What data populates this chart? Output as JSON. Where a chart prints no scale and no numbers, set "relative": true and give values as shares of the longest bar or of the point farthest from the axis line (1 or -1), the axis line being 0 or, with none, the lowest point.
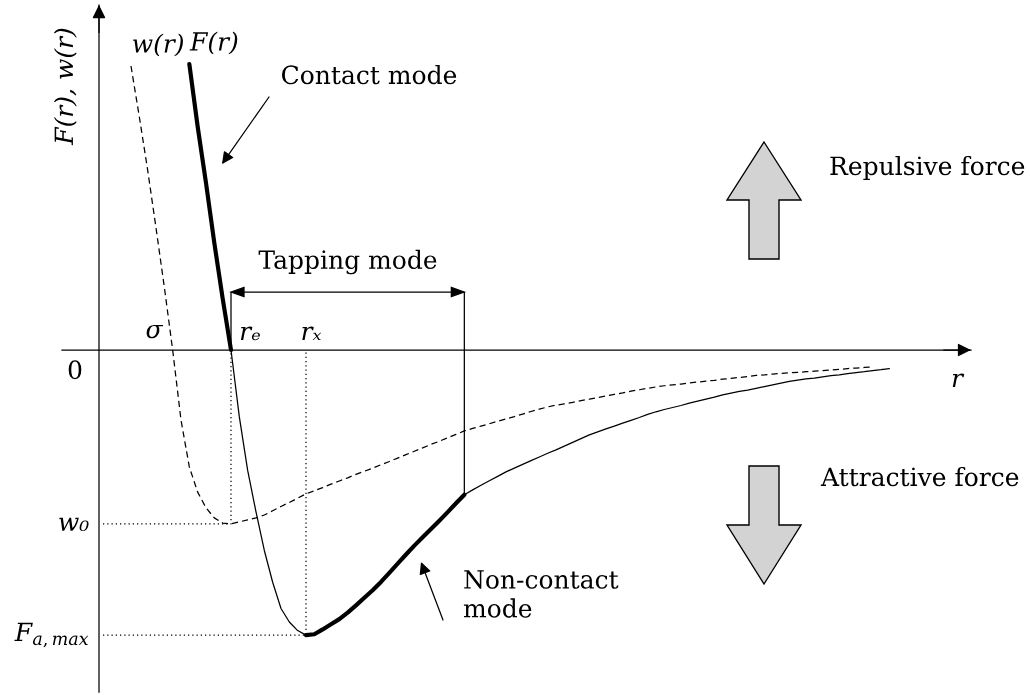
{
  "chart_data": {
    "type": "line",
    "relative": true,
    "xlabel": "r",
    "ylabel": "F(r), w(r)",
    "categories": [
      null,
      null,
      null,
      null,
      null,
      null,
      null,
      null,
      null,
      null,
      null,
      null,
      null,
      null,
      null,
      null,
      null,
      null,
      null,
      null,
      null,
      null,
      null,
      null,
      null,
      null,
      null,
      null,
      null,
      null,
      null,
      null,
      null,
      null,
      null,
      null,
      null,
      null,
      null,
      null,
      null,
      null,
      null,
      null,
      null,
      null,
      null,
      null,
      null,
      null,
      null,
      null,
      null,
      null,
      null,
      null,
      null,
      null,
      null,
      null,
      null,
      null,
      null,
      null,
      null,
      null,
      null,
      null,
      null,
      null,
      null,
      null,
      null,
      null,
      null,
      null,
      null,
      null,
      null,
      null,
      null,
      null,
      null,
      null,
      null,
      null,
      null,
      null,
      null,
      null,
      null,
      null
    ],
    "series": [
      {
        "name": "w(r)",
        "color": "#000000",
        "line_style": "dashed",
        "values": [
          0.993,
          0.815,
          0.629,
          0.427,
          0.22,
          0.0,
          -0.245,
          -0.409,
          -0.497,
          -0.552,
          -0.587,
          -0.605,
          -0.608,
          -0.601,
          -0.594,
          -0.587,
          -0.577,
          -0.562,
          -0.547,
          -0.533,
          -0.518,
          -0.503,
          -0.492,
          -0.481,
          -0.469,
          -0.458,
          -0.447,
          -0.435,
          -0.424,
          -0.413,
          -0.401,
          -0.39,
          -0.378,
          -0.366,
          -0.354,
          -0.342,
          -0.33,
          -0.319,
          -0.307,
          -0.295,
          -0.283,
          -0.274,
          -0.266,
          -0.258,
          -0.249,
          -0.241,
          -0.233,
          -0.224,
          -0.215,
          -0.207,
          -0.199,
          -0.193,
          -0.188,
          -0.183,
          -0.177,
          -0.172,
          -0.166,
          -0.161,
          -0.155,
          -0.15,
          -0.144,
          -0.139,
          -0.134,
          -0.129,
          -0.125,
          -0.122,
          -0.119,
          -0.115,
          -0.112,
          -0.109,
          -0.106,
          -0.102,
          -0.099,
          -0.096,
          -0.093,
          -0.089,
          -0.087,
          -0.084,
          -0.082,
          -0.08,
          -0.078,
          -0.076,
          -0.074,
          -0.072,
          -0.07,
          -0.068,
          -0.065,
          -0.063,
          -0.061,
          -0.059,
          null,
          null
        ]
      },
      {
        "name": "F(r)",
        "color": "#000000",
        "values": [
          null,
          null,
          null,
          null,
          null,
          null,
          null,
          1.0,
          0.781,
          0.584,
          0.374,
          0.18,
          0.0,
          null,
          null,
          null,
          null,
          null,
          null,
          null,
          null,
          null,
          null,
          null,
          null,
          null,
          null,
          null,
          null,
          null,
          null,
          null,
          null,
          null,
          null,
          null,
          null,
          null,
          null,
          null,
          null,
          null,
          null,
          null,
          null,
          null,
          null,
          null,
          null,
          null,
          null,
          null,
          null,
          null,
          null,
          null,
          null,
          null,
          null,
          null,
          null,
          null,
          null,
          null,
          null,
          null,
          null,
          null,
          null,
          null,
          null,
          null,
          null,
          null,
          null,
          null,
          null,
          null,
          null,
          null,
          null,
          null,
          null,
          null,
          null,
          null,
          null,
          null,
          null,
          null,
          null,
          null
        ]
      },
      {
        "color": "#000000",
        "values": [
          null,
          null,
          null,
          null,
          null,
          null,
          null,
          null,
          null,
          null,
          null,
          null,
          0.0,
          -0.234,
          -0.421,
          -0.566,
          -0.701,
          -0.812,
          -0.904,
          -0.951,
          -0.981,
          -0.997,
          null,
          null,
          null,
          null,
          null,
          null,
          null,
          null,
          null,
          null,
          null,
          null,
          null,
          null,
          null,
          null,
          null,
          null,
          null,
          null,
          null,
          null,
          null,
          null,
          null,
          null,
          null,
          null,
          null,
          null,
          null,
          null,
          null,
          null,
          null,
          null,
          null,
          null,
          null,
          null,
          null,
          null,
          null,
          null,
          null,
          null,
          null,
          null,
          null,
          null,
          null,
          null,
          null,
          null,
          null,
          null,
          null,
          null,
          null,
          null,
          null,
          null,
          null,
          null,
          null,
          null,
          null,
          null,
          null,
          null
        ]
      },
      {
        "color": "#000000",
        "values": [
          null,
          null,
          null,
          null,
          null,
          null,
          null,
          null,
          null,
          null,
          null,
          null,
          null,
          null,
          null,
          null,
          null,
          null,
          null,
          null,
          null,
          -0.997,
          -0.994,
          -0.977,
          -0.959,
          -0.941,
          -0.918,
          -0.893,
          -0.866,
          -0.84,
          -0.811,
          -0.779,
          -0.747,
          -0.715,
          -0.684,
          -0.655,
          -0.626,
          -0.597,
          -0.567,
          -0.536,
          -0.506,
          null,
          null,
          null,
          null,
          null,
          null,
          null,
          null,
          null,
          null,
          null,
          null,
          null,
          null,
          null,
          null,
          null,
          null,
          null,
          null,
          null,
          null,
          null,
          null,
          null,
          null,
          null,
          null,
          null,
          null,
          null,
          null,
          null,
          null,
          null,
          null,
          null,
          null,
          null,
          null,
          null,
          null,
          null,
          null,
          null,
          null,
          null,
          null,
          null,
          null,
          null
        ]
      },
      {
        "color": "#000000",
        "values": [
          null,
          null,
          null,
          null,
          null,
          null,
          null,
          null,
          null,
          null,
          null,
          null,
          null,
          null,
          null,
          null,
          null,
          null,
          null,
          null,
          null,
          null,
          null,
          null,
          null,
          null,
          null,
          null,
          null,
          null,
          null,
          null,
          null,
          null,
          null,
          null,
          null,
          null,
          null,
          null,
          -0.506,
          -0.489,
          -0.473,
          -0.457,
          -0.442,
          -0.426,
          -0.413,
          -0.4,
          -0.387,
          -0.374,
          -0.361,
          -0.349,
          -0.336,
          -0.323,
          -0.31,
          -0.297,
          -0.286,
          -0.276,
          -0.266,
          -0.256,
          -0.246,
          -0.236,
          -0.225,
          -0.216,
          -0.208,
          -0.201,
          -0.194,
          -0.186,
          -0.179,
          -0.172,
          -0.165,
          -0.157,
          -0.151,
          -0.145,
          -0.14,
          -0.134,
          -0.128,
          -0.122,
          -0.116,
          -0.11,
          -0.105,
          -0.101,
          -0.098,
          -0.094,
          -0.09,
          -0.087,
          -0.083,
          -0.079,
          -0.076,
          -0.072,
          -0.069,
          -0.065
        ]
      }
    ],
    "ref_lines": [
      {
        "axis": "y",
        "value": -0.608,
        "label": "w₀",
        "line_style": "dotted",
        "color": "#000000"
      },
      {
        "axis": "y",
        "value": -0.997,
        "label": "F$_{a,max}$",
        "line_style": "dotted",
        "color": "#000000"
      }
    ],
    "annotations": [
      "0",
      "σ",
      "rₑ",
      "rₓ",
      "Contact mode",
      "Tapping mode",
      "Non-contact\nmode",
      "Repulsive force",
      "Attractive force"
    ],
    "line_style": "solid",
    "legend": false
  }
}
